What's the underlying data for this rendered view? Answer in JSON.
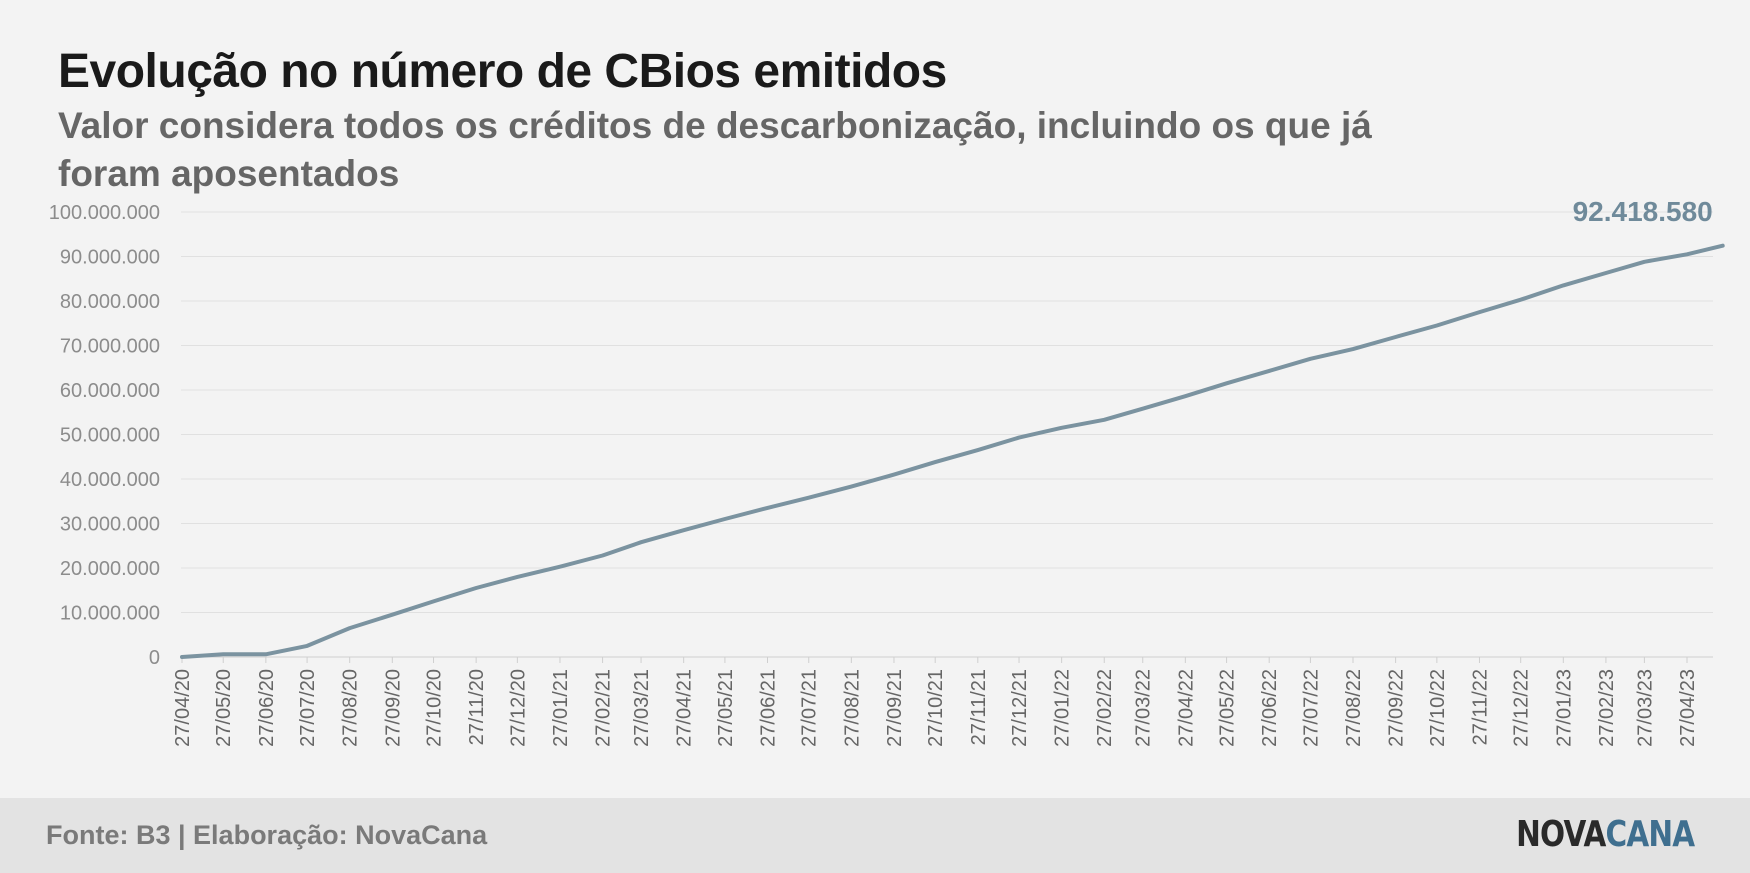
{
  "header": {
    "title": "Evolução no número de CBios emitidos",
    "subtitle": "Valor considera todos os créditos de descarbonização, incluindo os que já foram aposentados"
  },
  "footer": {
    "source": "Fonte: B3 | Elaboração: NovaCana",
    "logo_part1": "NOVA",
    "logo_part2": "CANA"
  },
  "colors": {
    "line": "#7b93a0",
    "annotation": "#6f8a9a",
    "axis_text": "#8c8c8c",
    "grid": "#e0e0e0"
  },
  "chart_data": {
    "type": "line",
    "ylim": [
      0,
      100000000
    ],
    "yticks": [
      0,
      10000000,
      20000000,
      30000000,
      40000000,
      50000000,
      60000000,
      70000000,
      80000000,
      90000000,
      100000000
    ],
    "ytick_labels": [
      "0",
      "10.000.000",
      "20.000.000",
      "30.000.000",
      "40.000.000",
      "50.000.000",
      "60.000.000",
      "70.000.000",
      "80.000.000",
      "90.000.000",
      "100.000.000"
    ],
    "xtick_labels": [
      "27/04/20",
      "27/05/20",
      "27/06/20",
      "27/07/20",
      "27/08/20",
      "27/09/20",
      "27/10/20",
      "27/11/20",
      "27/12/20",
      "27/01/21",
      "27/02/21",
      "27/03/21",
      "27/04/21",
      "27/05/21",
      "27/06/21",
      "27/07/21",
      "27/08/21",
      "27/09/21",
      "27/10/21",
      "27/11/21",
      "27/12/21",
      "27/01/22",
      "27/02/22",
      "27/03/22",
      "27/04/22",
      "27/05/22",
      "27/06/22",
      "27/07/22",
      "27/08/22",
      "27/09/22",
      "27/10/22",
      "27/11/22",
      "27/12/22",
      "27/01/23",
      "27/02/23",
      "27/03/23",
      "27/04/23"
    ],
    "grid": "horizontal",
    "last_value_label": "92.418.580",
    "series": [
      {
        "x": [
          "27/04/20",
          "27/05/20",
          "27/06/20",
          "27/07/20",
          "27/08/20",
          "27/09/20",
          "27/10/20",
          "27/11/20",
          "27/12/20",
          "27/01/21",
          "27/02/21",
          "27/03/21",
          "27/04/21",
          "27/05/21",
          "27/06/21",
          "27/07/21",
          "27/08/21",
          "27/09/21",
          "27/10/21",
          "27/11/21",
          "27/12/21",
          "27/01/22",
          "27/02/22",
          "27/03/22",
          "27/04/22",
          "27/05/22",
          "27/06/22",
          "27/07/22",
          "27/08/22",
          "27/09/22",
          "27/10/22",
          "27/11/22",
          "27/12/22",
          "27/01/23",
          "27/02/23",
          "27/03/23",
          "27/04/23",
          "23/05/23"
        ],
        "values": [
          0,
          600000,
          600000,
          2500000,
          6500000,
          9500000,
          12500000,
          15500000,
          18000000,
          20300000,
          22800000,
          25800000,
          28500000,
          31000000,
          33500000,
          35800000,
          38300000,
          41000000,
          43800000,
          46500000,
          49300000,
          51500000,
          53300000,
          55800000,
          58600000,
          61500000,
          64300000,
          67000000,
          69200000,
          71900000,
          74500000,
          77500000,
          80300000,
          83500000,
          86300000,
          88800000,
          90500000,
          92418580
        ]
      }
    ]
  }
}
